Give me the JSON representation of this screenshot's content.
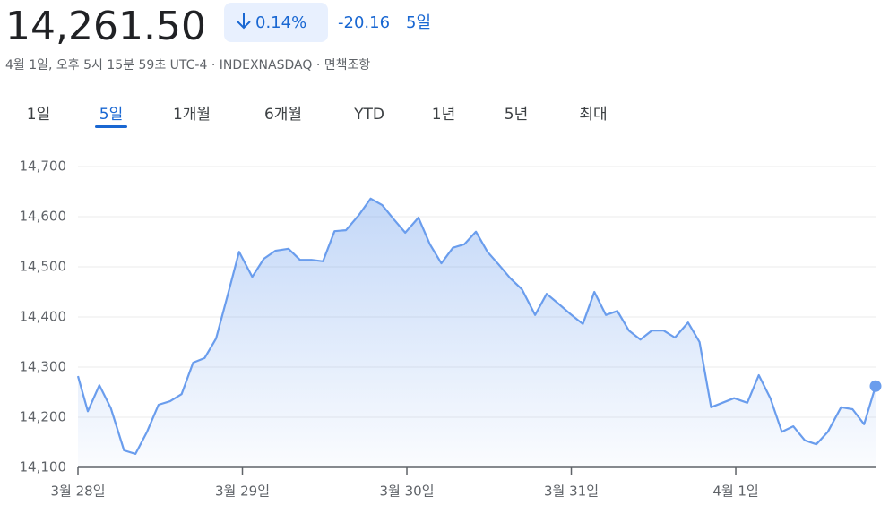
{
  "header": {
    "price": "14,261.50",
    "change_percent": "0.14%",
    "change": "-20.16",
    "period": "5일",
    "subtitle": "4월 1일, 오후 5시 15분 59초 UTC-4 · INDEXNASDAQ · 면책조항"
  },
  "tabs": {
    "items": [
      "1일",
      "5일",
      "1개월",
      "6개월",
      "YTD",
      "1년",
      "5년",
      "최대"
    ],
    "selected": 1
  },
  "chart_data": {
    "type": "line",
    "color": "#6a9ded",
    "grid": true,
    "x": [
      0,
      0.06,
      0.13,
      0.2,
      0.28,
      0.35,
      0.42,
      0.49,
      0.56,
      0.63,
      0.7,
      0.77,
      0.84,
      0.91,
      0.98,
      1.06,
      1.13,
      1.2,
      1.28,
      1.35,
      1.42,
      1.49,
      1.56,
      1.63,
      1.71,
      1.78,
      1.85,
      1.92,
      1.99,
      2.07,
      2.14,
      2.21,
      2.28,
      2.35,
      2.42,
      2.49,
      2.56,
      2.63,
      2.7,
      2.78,
      2.85,
      2.92,
      2.99,
      3.07,
      3.14,
      3.21,
      3.28,
      3.35,
      3.42,
      3.49,
      3.56,
      3.63,
      3.71,
      3.78,
      3.85,
      3.99,
      4.07,
      4.14,
      4.21,
      4.28,
      4.35,
      4.42,
      4.49,
      4.56,
      4.64,
      4.71,
      4.78,
      4.85
    ],
    "values": [
      14282,
      14212,
      14264,
      14218,
      14134,
      14127,
      14171,
      14225,
      14232,
      14246,
      14309,
      14318,
      14357,
      14443,
      14530,
      14480,
      14516,
      14532,
      14536,
      14514,
      14514,
      14511,
      14571,
      14573,
      14604,
      14636,
      14623,
      14595,
      14568,
      14598,
      14545,
      14507,
      14538,
      14545,
      14570,
      14530,
      14504,
      14477,
      14455,
      14404,
      14446,
      14427,
      14407,
      14386,
      14450,
      14404,
      14412,
      14373,
      14355,
      14373,
      14373,
      14359,
      14389,
      14350,
      14220,
      14238,
      14229,
      14284,
      14238,
      14171,
      14182,
      14154,
      14146,
      14171,
      14220,
      14216,
      14186,
      14262
    ],
    "xlim": [
      0,
      4.85
    ],
    "xticks": [
      {
        "value": 0,
        "label": "3월 28일"
      },
      {
        "value": 1,
        "label": "3월 29일"
      },
      {
        "value": 2,
        "label": "3월 30일"
      },
      {
        "value": 3,
        "label": "3월 31일"
      },
      {
        "value": 4,
        "label": "4월 1일"
      }
    ],
    "ylim": [
      14100,
      14700
    ],
    "yticks": [
      {
        "value": 14100,
        "label": "14,100"
      },
      {
        "value": 14200,
        "label": "14,200"
      },
      {
        "value": 14300,
        "label": "14,300"
      },
      {
        "value": 14400,
        "label": "14,400"
      },
      {
        "value": 14500,
        "label": "14,500"
      },
      {
        "value": 14600,
        "label": "14,600"
      },
      {
        "value": 14700,
        "label": "14,700"
      }
    ]
  }
}
